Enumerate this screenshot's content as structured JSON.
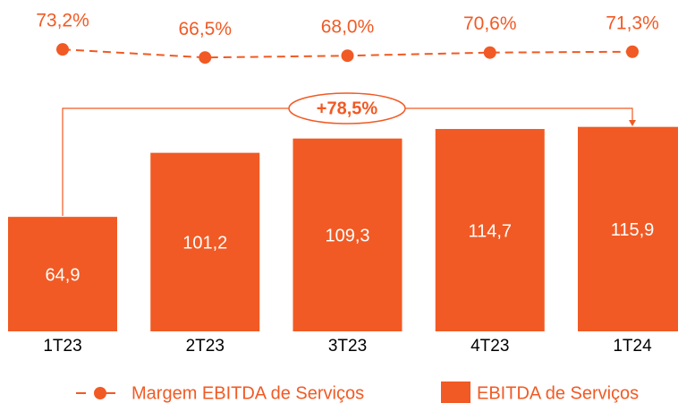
{
  "chart_data": {
    "type": "combo",
    "categories": [
      "1T23",
      "2T23",
      "3T23",
      "4T23",
      "1T24"
    ],
    "series": [
      {
        "name": "Margem EBITDA de Serviços",
        "type": "line",
        "axis": "y2",
        "color": "#f15a24",
        "values": [
          73.2,
          66.5,
          68.0,
          70.6,
          71.3
        ],
        "value_labels": [
          "73,2%",
          "66,5%",
          "68,0%",
          "70,6%",
          "71,3%"
        ]
      },
      {
        "name": "EBITDA de Serviços",
        "type": "bar",
        "color": "#f15a24",
        "values": [
          64.9,
          101.2,
          109.3,
          114.7,
          115.9
        ],
        "value_labels": [
          "64,9",
          "101,2",
          "109,3",
          "114,7",
          "115,9"
        ]
      }
    ],
    "annotation": "+78,5%",
    "ylim": [
      0,
      120
    ],
    "y2lim": [
      60,
      80
    ],
    "grid": false
  }
}
